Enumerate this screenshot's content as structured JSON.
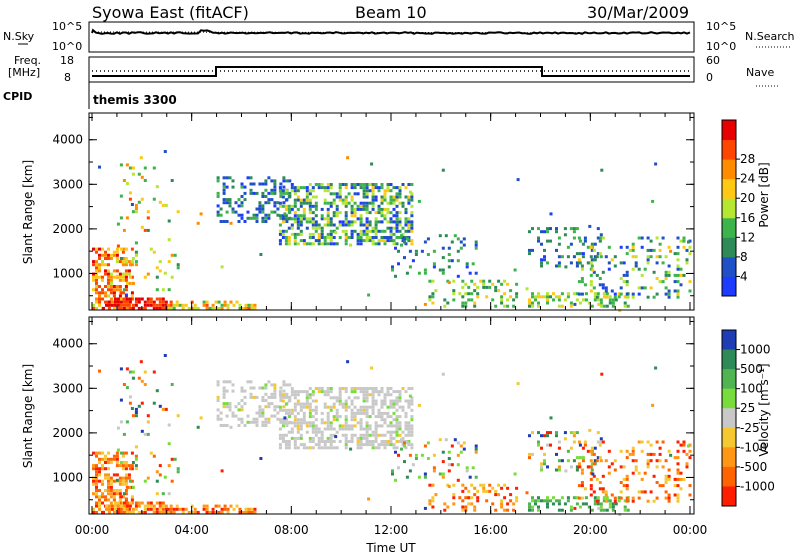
{
  "header": {
    "station": "Syowa East (fitACF)",
    "beam": "Beam 10",
    "date": "30/Mar/2009"
  },
  "top_panels": {
    "nsky_label": "N.Sky",
    "nsearch_label": "N.Search",
    "noise_ticks": [
      "10^5",
      "10^0"
    ],
    "noise_right_ticks": [
      "10^5",
      "10^0"
    ],
    "freq_label_1": "Freq.",
    "freq_label_2": "[MHz]",
    "freq_ticks": [
      "18",
      "8"
    ],
    "nave_label": "Nave",
    "nave_ticks": [
      "60",
      "0"
    ],
    "cpid_label": "CPID",
    "cpid_value": "themis 3300"
  },
  "chart_data": [
    {
      "type": "heatmap",
      "panel": "power",
      "ylabel": "Slant Range [km]",
      "xlabel": "Time UT",
      "x_ticks": [
        "00:00",
        "04:00",
        "08:00",
        "12:00",
        "16:00",
        "20:00",
        "00:00"
      ],
      "x_range_hours": [
        0,
        24
      ],
      "y_ticks": [
        "1000",
        "2000",
        "3000",
        "4000"
      ],
      "ylim_km": [
        180,
        4600
      ],
      "colorbar_label": "Power [dB]",
      "colorbar_ticks": [
        "4",
        "8",
        "12",
        "16",
        "20",
        "24",
        "28"
      ],
      "colorbar_range": [
        0,
        32
      ],
      "colorbar_colors": [
        "#1e3cff",
        "#2050c8",
        "#2e8b57",
        "#3cb44b",
        "#b4e632",
        "#ffc814",
        "#ff8c00",
        "#ff4600",
        "#e60000"
      ]
    },
    {
      "type": "heatmap",
      "panel": "velocity",
      "ylabel": "Slant Range [km]",
      "xlabel": "Time UT",
      "x_ticks": [
        "00:00",
        "04:00",
        "08:00",
        "12:00",
        "16:00",
        "20:00",
        "00:00"
      ],
      "x_range_hours": [
        0,
        24
      ],
      "y_ticks": [
        "1000",
        "2000",
        "3000",
        "4000"
      ],
      "ylim_km": [
        180,
        4600
      ],
      "colorbar_label": "Velocity [m s⁻¹]",
      "colorbar_ticks": [
        "1000",
        "500",
        "100",
        "25",
        "-25",
        "-100",
        "-500",
        "-1000"
      ],
      "colorbar_colors": [
        "#1e3cb4",
        "#2e8b57",
        "#50b450",
        "#78dc3c",
        "#c8c8c8",
        "#f5c832",
        "#ff9614",
        "#ff6400",
        "#ff1e00"
      ]
    }
  ]
}
